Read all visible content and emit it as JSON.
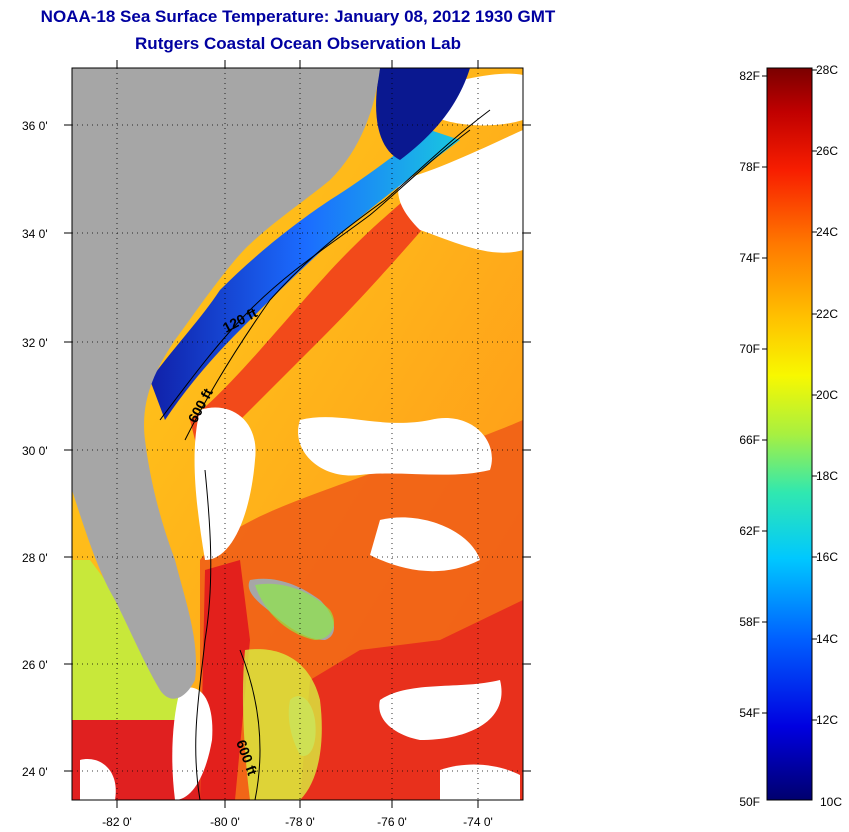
{
  "header": {
    "title": "NOAA-18 Sea Surface Temperature:  January 08, 2012 1930 GMT",
    "subtitle": "Rutgers Coastal Ocean Observation Lab"
  },
  "map": {
    "lat_ticks": [
      "36 0'",
      "34 0'",
      "32 0'",
      "30 0'",
      "28 0'",
      "26 0'",
      "24 0'"
    ],
    "lon_ticks": [
      "-82 0'",
      "-80 0'",
      "-78 0'",
      "-76 0'",
      "-74 0'"
    ],
    "contour_labels": [
      "120 ft",
      "600 ft",
      "600 ft"
    ],
    "colors": {
      "land": "#a6a6a6",
      "cold": "#0b1a9a",
      "cool": "#1c8cff",
      "mild": "#ffe000",
      "warm": "#ff9a1a",
      "hot": "#e8211e",
      "cloud": "#ffffff"
    }
  },
  "colorbar": {
    "fahrenheit_labels": [
      "82F",
      "78F",
      "74F",
      "70F",
      "66F",
      "62F",
      "58F",
      "54F",
      "50F"
    ],
    "celsius_labels": [
      "28C",
      "26C",
      "24C",
      "22C",
      "20C",
      "18C",
      "16C",
      "14C",
      "12C",
      "10C"
    ]
  }
}
